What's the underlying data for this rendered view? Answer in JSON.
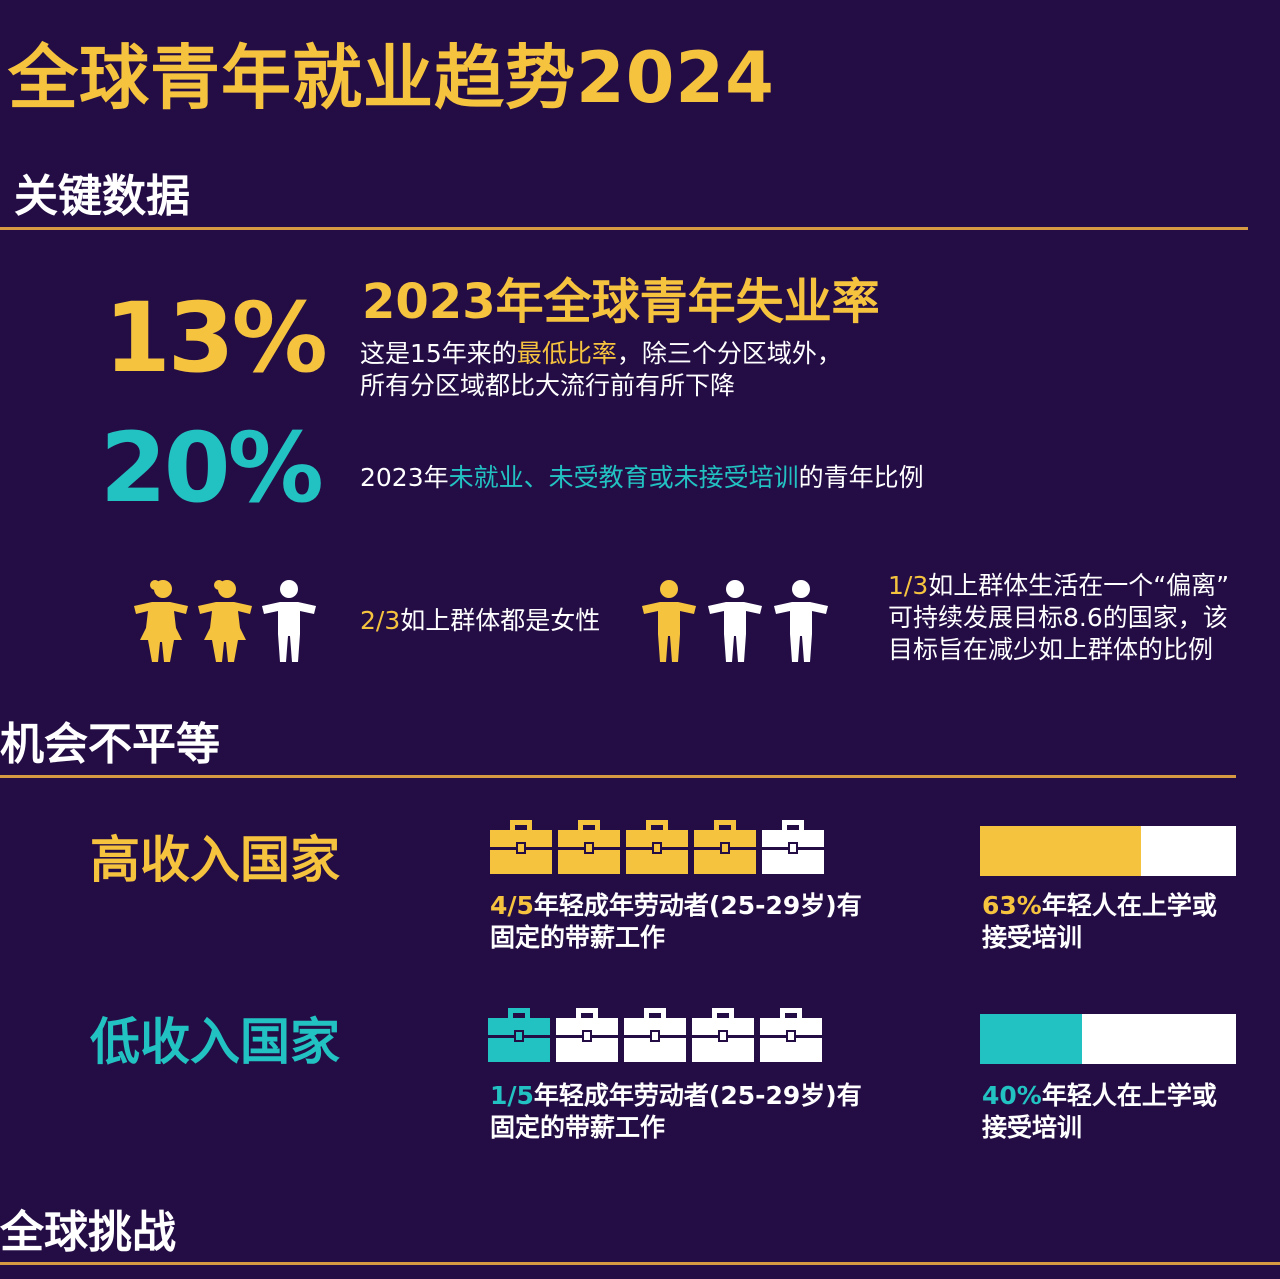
{
  "title": "全球青年就业趋势2024",
  "sections": {
    "key_data": "关键数据",
    "inequality": "机会不平等",
    "global_challenges": "全球挑战"
  },
  "stat1": {
    "value": "13%",
    "heading": "2023年全球青年失业率",
    "line1_pre": "这是15年来的",
    "line1_highlight": "最低比率",
    "line1_post": "，除三个分区域外，",
    "line2": "所有分区域都比大流行前有所下降"
  },
  "stat2": {
    "value": "20%",
    "pre": "2023年",
    "highlight": "未就业、未受教育或未接受培训",
    "post": "的青年比例"
  },
  "group1": {
    "fraction": "2/3",
    "text": "如上群体都是女性",
    "highlighted_count": 2,
    "total": 3
  },
  "group2": {
    "fraction": "1/3",
    "line1": "如上群体生活在一个“偏离”",
    "line2": "可持续发展目标8.6的国家，该",
    "line3": "目标旨在减少如上群体的比例",
    "highlighted_count": 1,
    "total": 3
  },
  "high_income": {
    "label": "高收入国家",
    "fraction": "4/5",
    "line1": "年轻成年劳动者(25-29岁)有",
    "line2": "固定的带薪工作",
    "filled_cases": 4,
    "total_cases": 5,
    "pct": "63%",
    "pct_value": 0.63,
    "pct_line1": "年轻人在上学或",
    "pct_line2": "接受培训"
  },
  "low_income": {
    "label": "低收入国家",
    "fraction": "1/5",
    "line1": "年轻成年劳动者(25-29岁)有",
    "line2": "固定的带薪工作",
    "filled_cases": 1,
    "total_cases": 5,
    "pct": "40%",
    "pct_value": 0.4,
    "pct_line1": "年轻人在上学或",
    "pct_line2": "接受培训"
  },
  "colors": {
    "background": "#240d45",
    "yellow": "#f6c33f",
    "teal": "#23c2c2",
    "rule": "#d59a42",
    "white": "#ffffff"
  },
  "icons": {
    "person_female": "female-person-icon",
    "person_male": "male-person-icon",
    "briefcase": "briefcase-icon"
  }
}
